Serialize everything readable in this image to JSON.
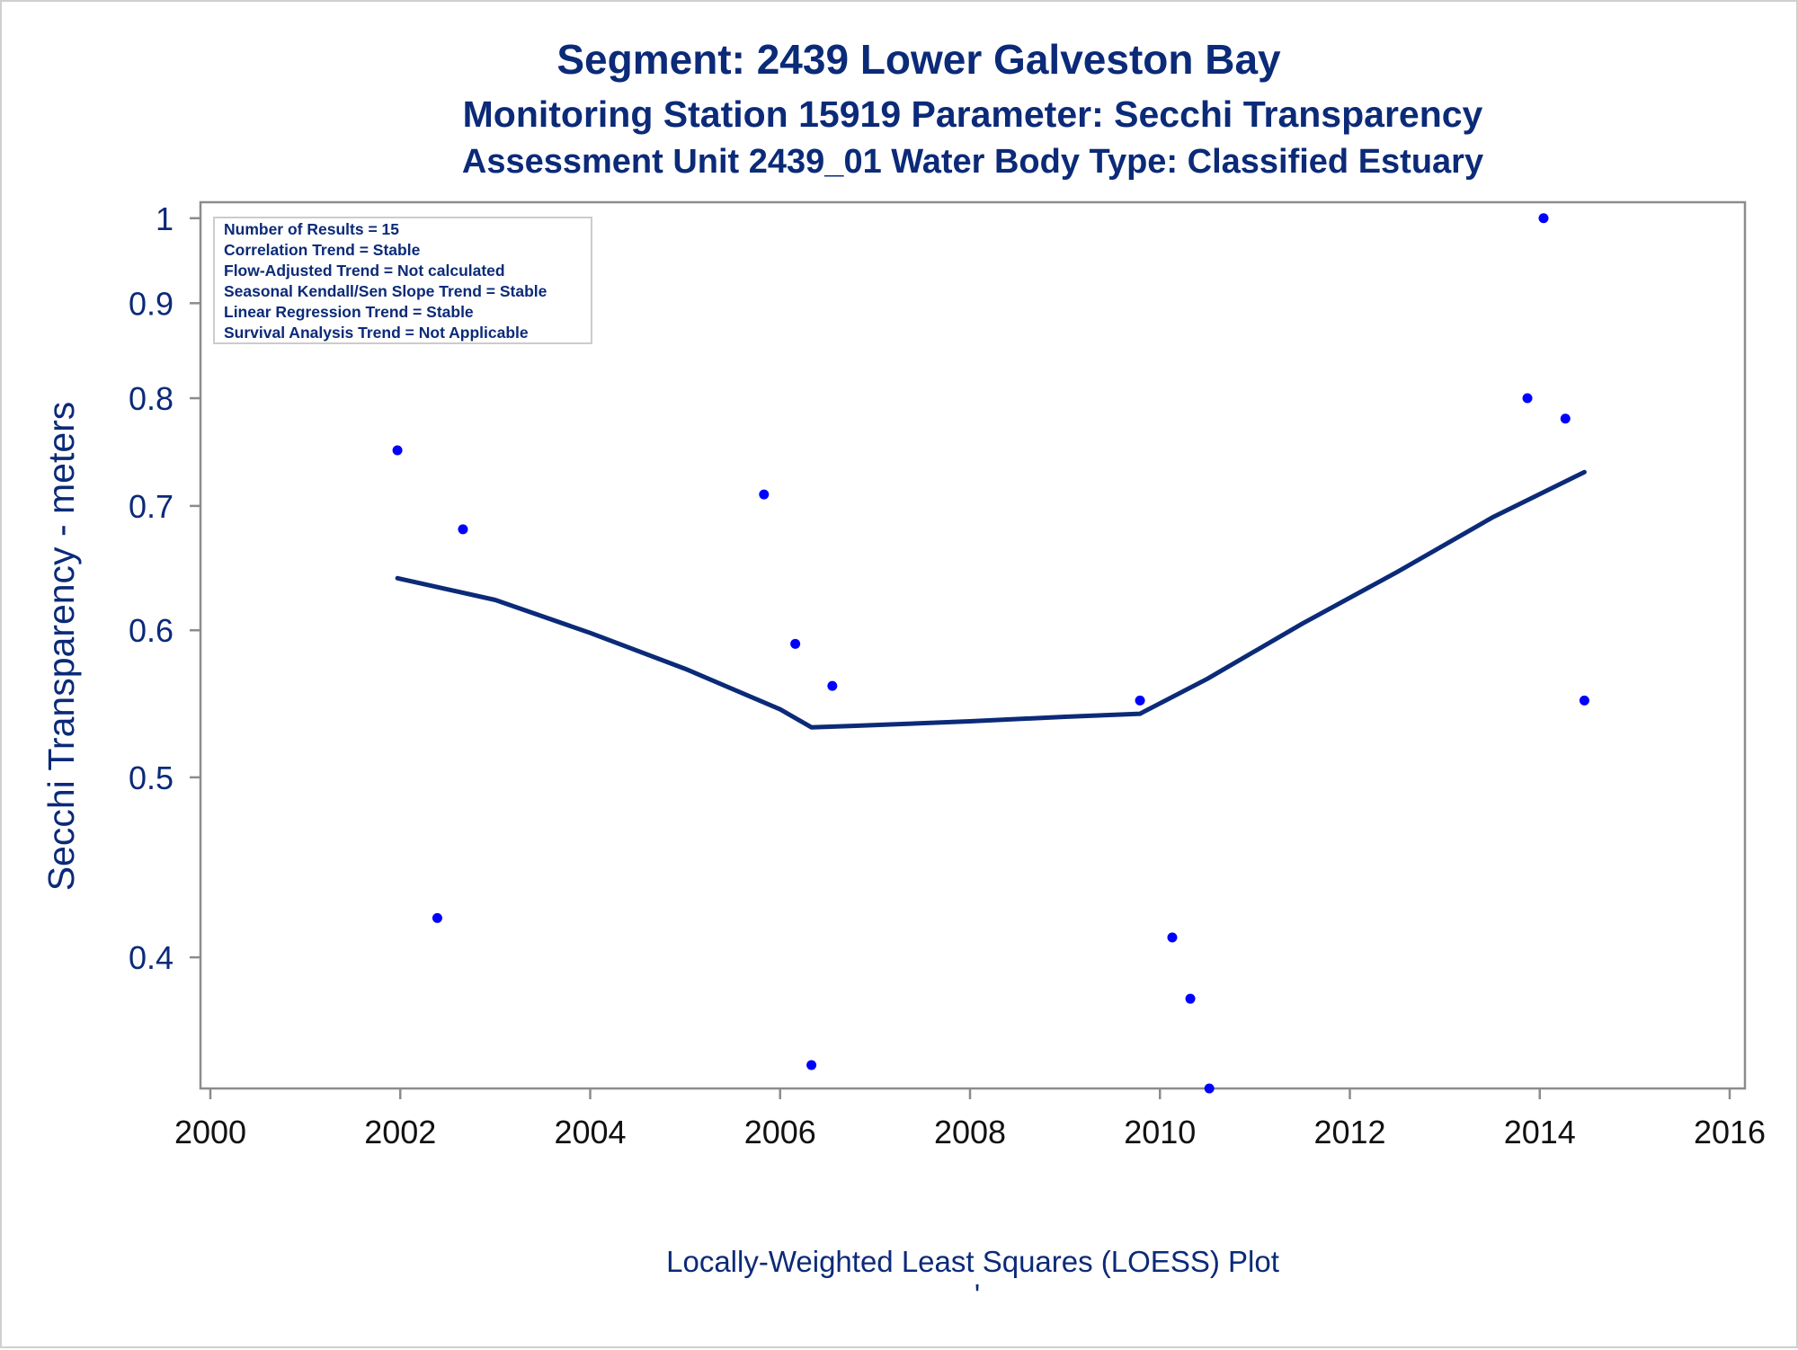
{
  "titles": {
    "line1": "Segment: 2439  Lower Galveston Bay",
    "line2": "Monitoring Station 15919 Parameter: Secchi Transparency",
    "line3": "Assessment Unit 2439_01   Water Body Type: Classified Estuary"
  },
  "inset": {
    "lines": [
      "Number of Results = 15",
      "Correlation Trend = Stable",
      "Flow-Adjusted Trend = Not calculated",
      "Seasonal Kendall/Sen Slope Trend = Stable",
      "Linear Regression Trend = Stable",
      "Survival Analysis Trend = Not Applicable"
    ]
  },
  "footer": {
    "caption": "Locally-Weighted Least Squares (LOESS) Plot",
    "mark": "'"
  },
  "colors": {
    "points": "#0000ff",
    "loess": "#0b2a78",
    "text": "#0b2a78",
    "axis": "#8c8c8c"
  },
  "chart_data": {
    "type": "scatter",
    "ylabel": "Secchi Transparency - meters",
    "xlabel": "",
    "yscale": "log",
    "xlim": [
      2000,
      2016
    ],
    "ylim": [
      0.34,
      1.02
    ],
    "xticks": [
      "2000",
      "2002",
      "2004",
      "2006",
      "2008",
      "2010",
      "2012",
      "2014",
      "2016"
    ],
    "yticks": [
      "0.4",
      "0.5",
      "0.6",
      "0.7",
      "0.8",
      "0.9",
      "1"
    ],
    "points": [
      {
        "x": 2001.97,
        "y": 0.75
      },
      {
        "x": 2002.39,
        "y": 0.42
      },
      {
        "x": 2002.66,
        "y": 0.68
      },
      {
        "x": 2005.83,
        "y": 0.71
      },
      {
        "x": 2006.16,
        "y": 0.59
      },
      {
        "x": 2006.33,
        "y": 0.35
      },
      {
        "x": 2006.55,
        "y": 0.56
      },
      {
        "x": 2009.79,
        "y": 0.55
      },
      {
        "x": 2010.13,
        "y": 0.41
      },
      {
        "x": 2010.32,
        "y": 0.38
      },
      {
        "x": 2010.52,
        "y": 0.34
      },
      {
        "x": 2013.87,
        "y": 0.8
      },
      {
        "x": 2014.04,
        "y": 1.0
      },
      {
        "x": 2014.27,
        "y": 0.78
      },
      {
        "x": 2014.47,
        "y": 0.55
      }
    ],
    "loess": {
      "name": "LOESS",
      "x": [
        2001.97,
        2003.0,
        2004.0,
        2005.0,
        2006.0,
        2006.33,
        2006.8,
        2008.0,
        2009.0,
        2009.79,
        2010.5,
        2011.5,
        2012.5,
        2013.5,
        2014.47
      ],
      "y": [
        0.64,
        0.623,
        0.598,
        0.572,
        0.544,
        0.532,
        0.533,
        0.536,
        0.539,
        0.541,
        0.565,
        0.605,
        0.645,
        0.69,
        0.73
      ]
    }
  }
}
